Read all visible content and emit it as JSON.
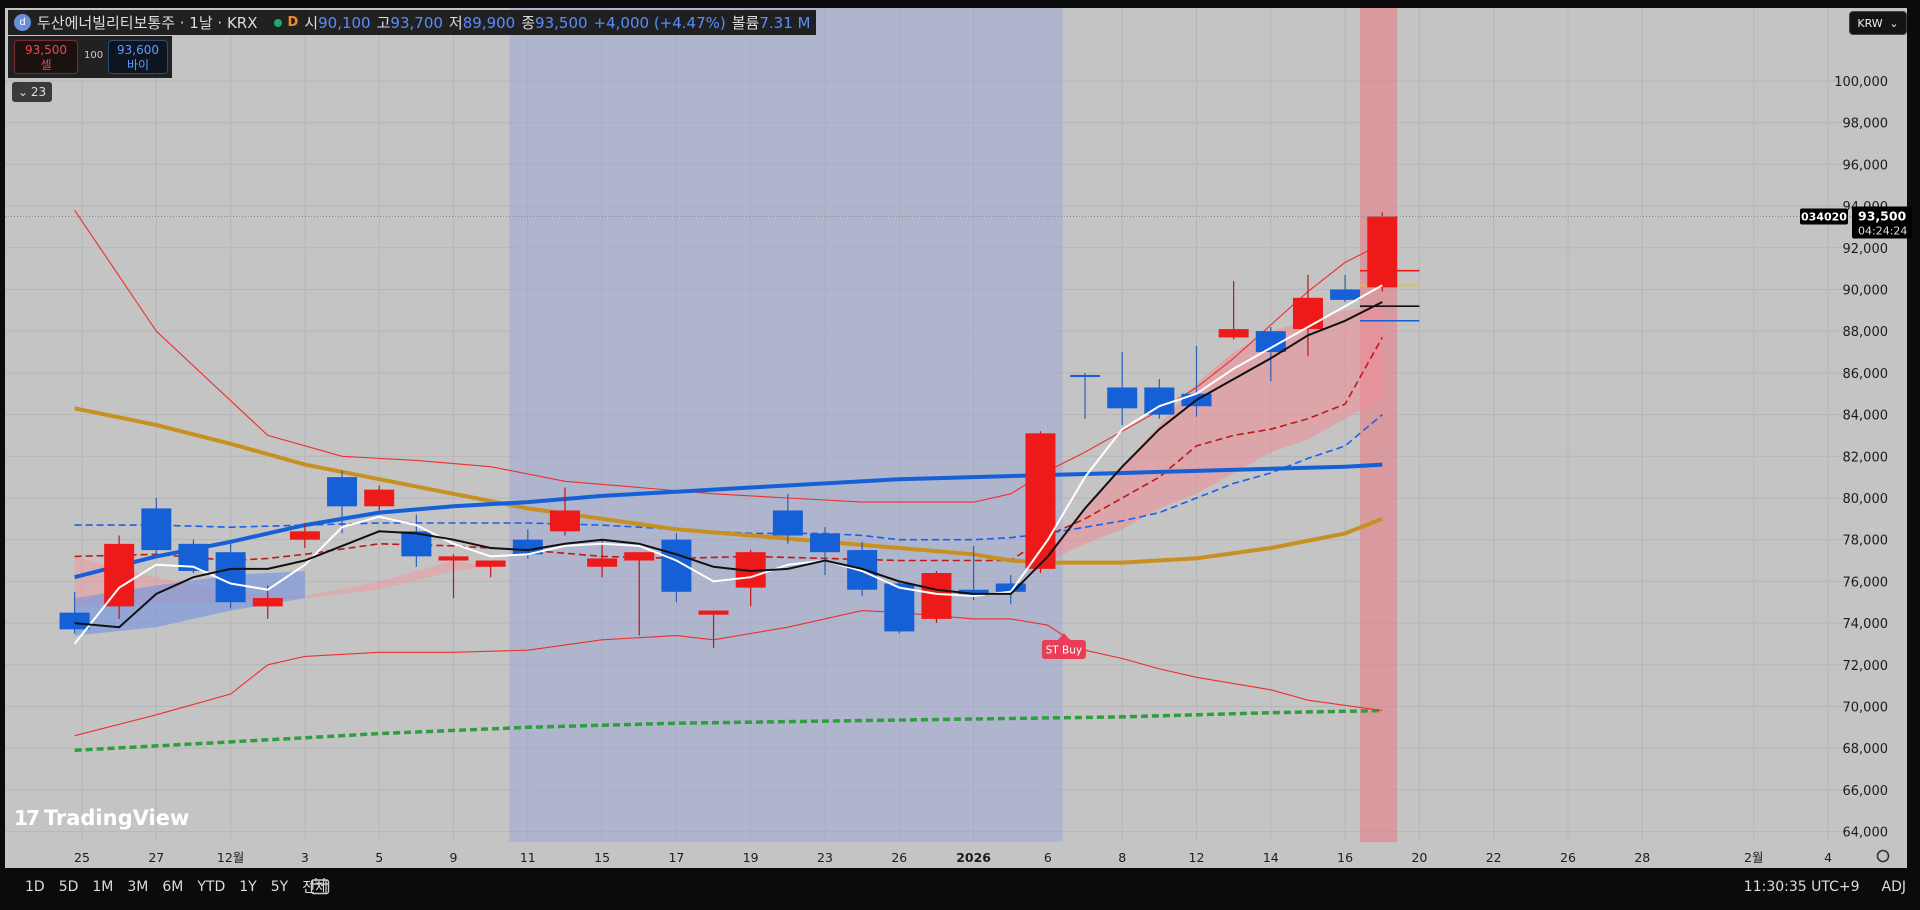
{
  "header": {
    "symbol": "두산에너빌리티보통주 · 1날 · KRX",
    "timeframe_badge": "D",
    "open_label": "시",
    "open": "90,100",
    "high_label": "고",
    "high": "93,700",
    "low_label": "저",
    "low": "89,900",
    "close_label": "종",
    "close": "93,500",
    "change": "+4,000 (+4.47%)",
    "volume_label": "볼륨",
    "volume": "7.31 M"
  },
  "trade": {
    "sell_price": "93,500",
    "sell_label": "셀",
    "qty": "100",
    "buy_price": "93,600",
    "buy_label": "바이"
  },
  "indicators_collapse": "23",
  "currency": "KRW",
  "price_tag": {
    "code": "034020",
    "price": "93,500",
    "countdown": "04:24:24"
  },
  "signal_label": "ST Buy",
  "branding": "TradingView",
  "bottom": {
    "ranges": [
      "1D",
      "5D",
      "1M",
      "3M",
      "6M",
      "YTD",
      "1Y",
      "5Y",
      "전체"
    ],
    "clock": "11:30:35 UTC+9",
    "adj": "ADJ"
  },
  "colors": {
    "bg": "#c4c4c4",
    "up": "#ee1a1a",
    "down": "#1560d6",
    "bband": "#ee2f2f",
    "ma_gold": "#c89020",
    "ma_blue": "#1560d6",
    "ma_green": "#2e9e3e"
  },
  "chart_data": {
    "type": "candlestick",
    "y_range": [
      63500,
      103500
    ],
    "y_ticks": [
      64000,
      66000,
      68000,
      70000,
      72000,
      74000,
      76000,
      78000,
      80000,
      82000,
      84000,
      86000,
      88000,
      90000,
      92000,
      94000,
      96000,
      98000,
      100000
    ],
    "x_labels": [
      {
        "i": 0,
        "t": "25"
      },
      {
        "i": 1,
        "t": "27"
      },
      {
        "i": 2,
        "t": "12월"
      },
      {
        "i": 3,
        "t": "3"
      },
      {
        "i": 4,
        "t": "5"
      },
      {
        "i": 5,
        "t": "9"
      },
      {
        "i": 6,
        "t": "11"
      },
      {
        "i": 7,
        "t": "15"
      },
      {
        "i": 8,
        "t": "17"
      },
      {
        "i": 9,
        "t": "19"
      },
      {
        "i": 10,
        "t": "23"
      },
      {
        "i": 11,
        "t": "26"
      },
      {
        "i": 12,
        "t": "2026"
      },
      {
        "i": 13,
        "t": "6"
      },
      {
        "i": 14,
        "t": "8"
      },
      {
        "i": 15,
        "t": "12"
      },
      {
        "i": 16,
        "t": "14"
      },
      {
        "i": 17,
        "t": "16"
      },
      {
        "i": 18,
        "t": "20"
      },
      {
        "i": 19,
        "t": "22"
      },
      {
        "i": 20,
        "t": "26"
      },
      {
        "i": 21,
        "t": "28"
      },
      {
        "i": 22.5,
        "t": "2월"
      },
      {
        "i": 23.5,
        "t": "4"
      }
    ],
    "candles": [
      {
        "i": -0.1,
        "o": 74500,
        "h": 75500,
        "l": 73500,
        "c": 73700
      },
      {
        "i": 0.5,
        "o": 74800,
        "h": 78200,
        "l": 74200,
        "c": 77800
      },
      {
        "i": 1,
        "o": 79500,
        "h": 80000,
        "l": 77200,
        "c": 77500
      },
      {
        "i": 1.5,
        "o": 77800,
        "h": 78000,
        "l": 76400,
        "c": 76500
      },
      {
        "i": 2,
        "o": 77400,
        "h": 77800,
        "l": 74700,
        "c": 75000
      },
      {
        "i": 2.5,
        "o": 74800,
        "h": 75800,
        "l": 74200,
        "c": 75200
      },
      {
        "i": 3,
        "o": 78000,
        "h": 78800,
        "l": 77600,
        "c": 78400
      },
      {
        "i": 3.5,
        "o": 81000,
        "h": 81300,
        "l": 78300,
        "c": 79600
      },
      {
        "i": 4,
        "o": 79600,
        "h": 80600,
        "l": 79400,
        "c": 80400
      },
      {
        "i": 4.5,
        "o": 78400,
        "h": 79200,
        "l": 76700,
        "c": 77200
      },
      {
        "i": 5,
        "o": 77000,
        "h": 77300,
        "l": 75200,
        "c": 77200
      },
      {
        "i": 5.5,
        "o": 76700,
        "h": 76900,
        "l": 76200,
        "c": 77000
      },
      {
        "i": 6,
        "o": 78000,
        "h": 78500,
        "l": 77100,
        "c": 77300
      },
      {
        "i": 6.5,
        "o": 78400,
        "h": 80500,
        "l": 78200,
        "c": 79400
      },
      {
        "i": 7,
        "o": 76700,
        "h": 78000,
        "l": 76200,
        "c": 77100
      },
      {
        "i": 7.5,
        "o": 77000,
        "h": 77400,
        "l": 73400,
        "c": 77400
      },
      {
        "i": 8,
        "o": 78000,
        "h": 78300,
        "l": 75000,
        "c": 75500
      },
      {
        "i": 8.5,
        "o": 74400,
        "h": 74600,
        "l": 72800,
        "c": 74600
      },
      {
        "i": 9,
        "o": 75700,
        "h": 77500,
        "l": 74800,
        "c": 77400
      },
      {
        "i": 9.5,
        "o": 79400,
        "h": 80200,
        "l": 77800,
        "c": 78200
      },
      {
        "i": 10,
        "o": 78300,
        "h": 78600,
        "l": 76300,
        "c": 77400
      },
      {
        "i": 10.5,
        "o": 77500,
        "h": 77900,
        "l": 75300,
        "c": 75600
      },
      {
        "i": 11,
        "o": 75900,
        "h": 76000,
        "l": 73500,
        "c": 73600
      },
      {
        "i": 11.5,
        "o": 74200,
        "h": 76500,
        "l": 74000,
        "c": 76400
      },
      {
        "i": 12,
        "o": 75600,
        "h": 77700,
        "l": 75100,
        "c": 75300
      },
      {
        "i": 12.5,
        "o": 75900,
        "h": 76300,
        "l": 74900,
        "c": 75500
      },
      {
        "i": 12.9,
        "o": 76600,
        "h": 83200,
        "l": 76400,
        "c": 83100
      },
      {
        "i": 13.5,
        "o": 85900,
        "h": 86000,
        "l": 83800,
        "c": 85800
      },
      {
        "i": 14,
        "o": 85300,
        "h": 87000,
        "l": 83500,
        "c": 84300
      },
      {
        "i": 14.5,
        "o": 85300,
        "h": 85700,
        "l": 83800,
        "c": 84000
      },
      {
        "i": 15,
        "o": 85000,
        "h": 87300,
        "l": 83900,
        "c": 84400
      },
      {
        "i": 15.5,
        "o": 87700,
        "h": 90400,
        "l": 87600,
        "c": 88100
      },
      {
        "i": 16,
        "o": 88000,
        "h": 88200,
        "l": 85600,
        "c": 87000
      },
      {
        "i": 16.5,
        "o": 88100,
        "h": 90700,
        "l": 86800,
        "c": 89600
      },
      {
        "i": 17,
        "o": 90000,
        "h": 90700,
        "l": 89400,
        "c": 89500
      },
      {
        "i": 17.5,
        "o": 90100,
        "h": 93700,
        "l": 89900,
        "c": 93500
      }
    ],
    "bb_upper": [
      [
        -0.1,
        93800
      ],
      [
        1,
        88000
      ],
      [
        2.5,
        83000
      ],
      [
        3.5,
        82000
      ],
      [
        4.5,
        81800
      ],
      [
        5.5,
        81500
      ],
      [
        6.5,
        80800
      ],
      [
        7.5,
        80500
      ],
      [
        8.5,
        80200
      ],
      [
        9.5,
        80000
      ],
      [
        10.5,
        79800
      ],
      [
        12,
        79800
      ],
      [
        12.5,
        80200
      ],
      [
        13,
        81300
      ],
      [
        13.5,
        82200
      ],
      [
        14,
        83200
      ],
      [
        14.5,
        84200
      ],
      [
        15,
        85300
      ],
      [
        15.5,
        86700
      ],
      [
        16,
        88300
      ],
      [
        16.5,
        89900
      ],
      [
        17,
        91300
      ],
      [
        17.5,
        92200
      ]
    ],
    "bb_lower": [
      [
        -0.1,
        68600
      ],
      [
        1,
        69600
      ],
      [
        2,
        70600
      ],
      [
        2.5,
        72000
      ],
      [
        3,
        72400
      ],
      [
        4,
        72600
      ],
      [
        5,
        72600
      ],
      [
        6,
        72700
      ],
      [
        7,
        73200
      ],
      [
        8,
        73400
      ],
      [
        8.5,
        73200
      ],
      [
        9.5,
        73800
      ],
      [
        10.5,
        74600
      ],
      [
        11,
        74500
      ],
      [
        12,
        74200
      ],
      [
        12.5,
        74200
      ],
      [
        13,
        73900
      ],
      [
        13.5,
        72700
      ],
      [
        14,
        72300
      ],
      [
        14.5,
        71800
      ],
      [
        15,
        71400
      ],
      [
        16,
        70800
      ],
      [
        16.5,
        70300
      ],
      [
        17.5,
        69800
      ]
    ],
    "bb_mid": [
      [
        -0.1,
        77200
      ],
      [
        1,
        77300
      ],
      [
        2,
        77000
      ],
      [
        2.5,
        77100
      ],
      [
        3,
        77300
      ],
      [
        4,
        77800
      ],
      [
        5,
        77700
      ],
      [
        5.5,
        77600
      ],
      [
        6,
        77500
      ],
      [
        7,
        77200
      ],
      [
        8,
        77100
      ],
      [
        9,
        77200
      ],
      [
        10,
        77100
      ],
      [
        11,
        77000
      ],
      [
        12,
        77000
      ],
      [
        12.5,
        77000
      ],
      [
        13,
        78200
      ],
      [
        13.5,
        79000
      ],
      [
        14,
        80000
      ],
      [
        14.5,
        81000
      ],
      [
        15,
        82500
      ],
      [
        15.5,
        83000
      ],
      [
        16,
        83300
      ],
      [
        16.5,
        83800
      ],
      [
        17,
        84500
      ],
      [
        17.5,
        87700
      ]
    ],
    "blue_dash": [
      [
        -0.1,
        78700
      ],
      [
        1,
        78700
      ],
      [
        2,
        78600
      ],
      [
        3,
        78700
      ],
      [
        4,
        78800
      ],
      [
        6,
        78800
      ],
      [
        7,
        78700
      ],
      [
        8,
        78500
      ],
      [
        9,
        78300
      ],
      [
        10,
        78300
      ],
      [
        10.5,
        78200
      ],
      [
        11,
        78000
      ],
      [
        12,
        78000
      ],
      [
        12.5,
        78100
      ],
      [
        13,
        78300
      ],
      [
        13.5,
        78600
      ],
      [
        14,
        78900
      ],
      [
        14.5,
        79300
      ],
      [
        15,
        80000
      ],
      [
        15.5,
        80700
      ],
      [
        16,
        81200
      ],
      [
        16.5,
        81900
      ],
      [
        17,
        82500
      ],
      [
        17.5,
        84000
      ]
    ],
    "ma_gold": [
      [
        -0.1,
        84300
      ],
      [
        1,
        83500
      ],
      [
        2,
        82600
      ],
      [
        3,
        81600
      ],
      [
        4,
        80900
      ],
      [
        5,
        80200
      ],
      [
        6,
        79500
      ],
      [
        7,
        79000
      ],
      [
        8,
        78500
      ],
      [
        9,
        78200
      ],
      [
        10,
        77900
      ],
      [
        11,
        77600
      ],
      [
        12,
        77300
      ],
      [
        12.5,
        77000
      ],
      [
        13,
        76900
      ],
      [
        14,
        76900
      ],
      [
        15,
        77100
      ],
      [
        16,
        77600
      ],
      [
        17,
        78300
      ],
      [
        17.5,
        79000
      ]
    ],
    "ma_blue": [
      [
        -0.1,
        76200
      ],
      [
        1,
        77200
      ],
      [
        2,
        77900
      ],
      [
        3,
        78700
      ],
      [
        4,
        79300
      ],
      [
        5,
        79600
      ],
      [
        6,
        79800
      ],
      [
        7,
        80100
      ],
      [
        8,
        80300
      ],
      [
        9,
        80500
      ],
      [
        10,
        80700
      ],
      [
        11,
        80900
      ],
      [
        12,
        81000
      ],
      [
        13,
        81100
      ],
      [
        14,
        81200
      ],
      [
        15,
        81300
      ],
      [
        16,
        81400
      ],
      [
        17,
        81500
      ],
      [
        17.5,
        81600
      ]
    ],
    "ma_green": [
      [
        -0.1,
        67900
      ],
      [
        2,
        68300
      ],
      [
        4,
        68700
      ],
      [
        6,
        69000
      ],
      [
        8,
        69200
      ],
      [
        10,
        69300
      ],
      [
        12,
        69400
      ],
      [
        14,
        69500
      ],
      [
        16,
        69700
      ],
      [
        17.5,
        69800
      ]
    ],
    "white_line": [
      [
        -0.1,
        73000
      ],
      [
        0.5,
        75700
      ],
      [
        1,
        76800
      ],
      [
        1.5,
        76700
      ],
      [
        2,
        75900
      ],
      [
        2.5,
        75600
      ],
      [
        3,
        76800
      ],
      [
        3.5,
        78600
      ],
      [
        4,
        79100
      ],
      [
        4.5,
        78700
      ],
      [
        5,
        77800
      ],
      [
        5.5,
        77200
      ],
      [
        6,
        77300
      ],
      [
        6.5,
        77700
      ],
      [
        7,
        77800
      ],
      [
        7.5,
        77700
      ],
      [
        8,
        77000
      ],
      [
        8.5,
        76000
      ],
      [
        9,
        76200
      ],
      [
        9.5,
        76800
      ],
      [
        10,
        77000
      ],
      [
        10.5,
        76500
      ],
      [
        11,
        75700
      ],
      [
        11.5,
        75400
      ],
      [
        12,
        75300
      ],
      [
        12.5,
        75500
      ],
      [
        13,
        78000
      ],
      [
        13.5,
        81000
      ],
      [
        14,
        83300
      ],
      [
        14.5,
        84400
      ],
      [
        15,
        85000
      ],
      [
        15.5,
        86200
      ],
      [
        16,
        87200
      ],
      [
        16.5,
        88200
      ],
      [
        17,
        89200
      ],
      [
        17.5,
        90200
      ]
    ],
    "black_line": [
      [
        -0.1,
        74000
      ],
      [
        0.5,
        73800
      ],
      [
        1,
        75400
      ],
      [
        1.5,
        76200
      ],
      [
        2,
        76600
      ],
      [
        2.5,
        76600
      ],
      [
        3,
        77000
      ],
      [
        3.5,
        77700
      ],
      [
        4,
        78400
      ],
      [
        4.5,
        78300
      ],
      [
        5,
        78000
      ],
      [
        5.5,
        77600
      ],
      [
        6,
        77500
      ],
      [
        6.5,
        77800
      ],
      [
        7,
        78000
      ],
      [
        7.5,
        77800
      ],
      [
        8,
        77300
      ],
      [
        8.5,
        76700
      ],
      [
        9,
        76500
      ],
      [
        9.5,
        76600
      ],
      [
        10,
        77000
      ],
      [
        10.5,
        76600
      ],
      [
        11,
        76000
      ],
      [
        11.5,
        75600
      ],
      [
        12,
        75400
      ],
      [
        12.5,
        75400
      ],
      [
        13,
        77200
      ],
      [
        13.5,
        79500
      ],
      [
        14,
        81500
      ],
      [
        14.5,
        83300
      ],
      [
        15,
        84700
      ],
      [
        15.5,
        85700
      ],
      [
        16,
        86700
      ],
      [
        16.5,
        87800
      ],
      [
        17,
        88500
      ],
      [
        17.5,
        89400
      ]
    ],
    "band_upper": [
      [
        -0.1,
        77200
      ],
      [
        1,
        76200
      ],
      [
        2,
        75500
      ],
      [
        3,
        75300
      ],
      [
        4,
        76000
      ],
      [
        5,
        77000
      ],
      [
        5.5,
        76700
      ]
    ],
    "band_lower": [
      [
        -0.1,
        74800
      ],
      [
        1,
        74900
      ],
      [
        2,
        75000
      ],
      [
        3,
        75200
      ],
      [
        4,
        75600
      ],
      [
        5,
        76500
      ],
      [
        5.5,
        76700
      ]
    ],
    "pink_band_upper": [
      [
        12.9,
        77000
      ],
      [
        13.5,
        79500
      ],
      [
        14,
        81500
      ],
      [
        14.5,
        83500
      ],
      [
        15,
        85500
      ],
      [
        15.5,
        87000
      ],
      [
        16,
        88000
      ],
      [
        16.5,
        88500
      ],
      [
        17,
        89000
      ],
      [
        17.5,
        89200
      ]
    ],
    "pink_band_lower": [
      [
        12.9,
        76800
      ],
      [
        13.5,
        77800
      ],
      [
        14,
        78500
      ],
      [
        14.5,
        79500
      ],
      [
        15,
        80200
      ],
      [
        15.5,
        81200
      ],
      [
        16,
        82200
      ],
      [
        16.5,
        82800
      ],
      [
        17,
        83800
      ],
      [
        17.5,
        84800
      ]
    ],
    "blue_band_upper": [
      [
        -0.1,
        75200
      ],
      [
        1,
        75800
      ],
      [
        2,
        76300
      ],
      [
        3,
        76500
      ]
    ],
    "blue_band_lower": [
      [
        -0.1,
        73400
      ],
      [
        1,
        73800
      ],
      [
        2,
        74600
      ],
      [
        3,
        75200
      ]
    ],
    "right_hlines": [
      {
        "y": 90900,
        "color": "#ee1a1a"
      },
      {
        "y": 90200,
        "color": "#e8c020"
      },
      {
        "y": 89200,
        "color": "#111111"
      },
      {
        "y": 88500,
        "color": "#1560d6"
      }
    ],
    "shade_blue_x": [
      5.75,
      13.2
    ],
    "shade_red_x": [
      17.2,
      17.7
    ],
    "current_price": 93500,
    "signal_at": 13
  }
}
